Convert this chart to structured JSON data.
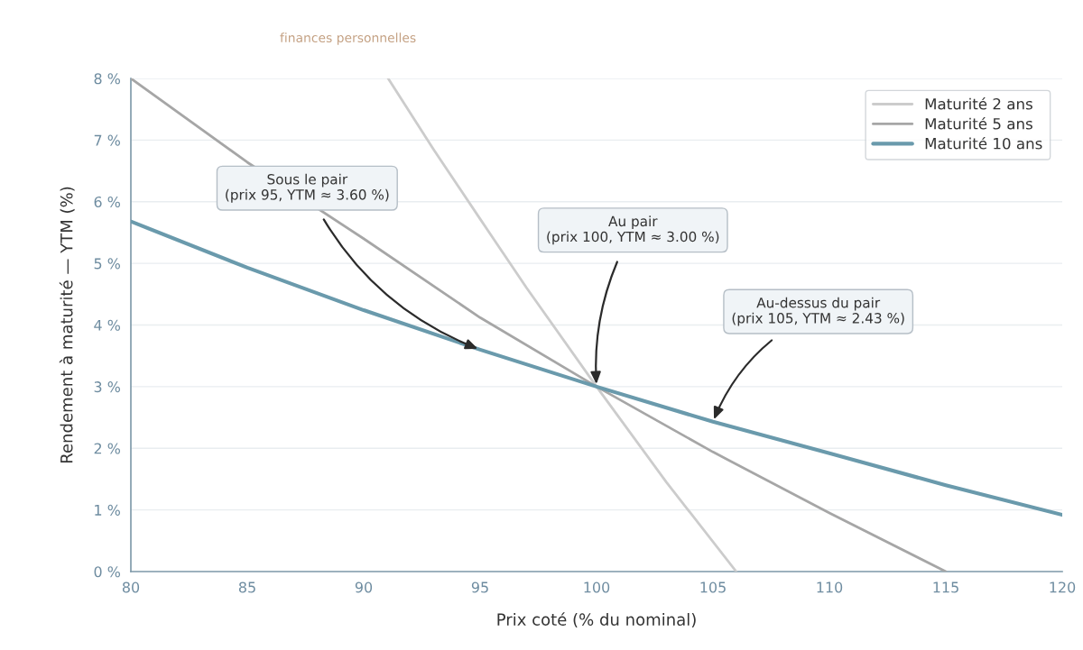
{
  "chart_data": {
    "type": "line",
    "xlabel": "Prix coté (% du nominal)",
    "ylabel": "Rendement à maturité — YTM (%)",
    "series": [
      {
        "name": "Maturité 2 ans",
        "color": "#cccccc",
        "x": [
          91.05,
          93,
          95,
          97,
          100,
          103,
          106
        ],
        "values": [
          8.0,
          6.85,
          5.72,
          4.6,
          3.0,
          1.45,
          0.0
        ]
      },
      {
        "name": "Maturité 5 ans",
        "color": "#a6a6a6",
        "x": [
          80,
          85,
          90,
          95,
          100,
          105,
          110,
          115
        ],
        "values": [
          8.0,
          6.64,
          5.4,
          4.12,
          3.0,
          1.94,
          0.95,
          0.0
        ]
      },
      {
        "name": "Maturité 10 ans",
        "color": "#6a9aac",
        "x": [
          80,
          85,
          90,
          95,
          100,
          105,
          110,
          115,
          120
        ],
        "values": [
          5.68,
          4.93,
          4.24,
          3.6,
          3.0,
          2.43,
          1.92,
          1.4,
          0.92
        ]
      }
    ],
    "xlim": [
      80,
      120
    ],
    "xticks": [
      80,
      85,
      90,
      95,
      100,
      105,
      110,
      115,
      120
    ],
    "ylim": [
      0,
      8
    ],
    "yticks": [
      {
        "value": 0,
        "label": "0 %"
      },
      {
        "value": 1,
        "label": "1 %"
      },
      {
        "value": 2,
        "label": "2 %"
      },
      {
        "value": 3,
        "label": "3 %"
      },
      {
        "value": 4,
        "label": "4 %"
      },
      {
        "value": 5,
        "label": "5 %"
      },
      {
        "value": 6,
        "label": "6 %"
      },
      {
        "value": 7,
        "label": "7 %"
      },
      {
        "value": 8,
        "label": "8 %"
      }
    ],
    "grid": "y",
    "legend": "top right",
    "annotations": [
      "finances personnelles",
      {
        "text": "Sous le pair\n(prix 95, YTM ≈ 3.60 %)",
        "x": 95,
        "y": 3.6
      },
      {
        "text": "Au pair\n(prix 100, YTM ≈ 3.00 %)",
        "x": 100,
        "y": 3.0
      },
      {
        "text": "Au-dessus du pair\n(prix 105, YTM ≈ 2.43 %)",
        "x": 105,
        "y": 2.43
      }
    ]
  }
}
